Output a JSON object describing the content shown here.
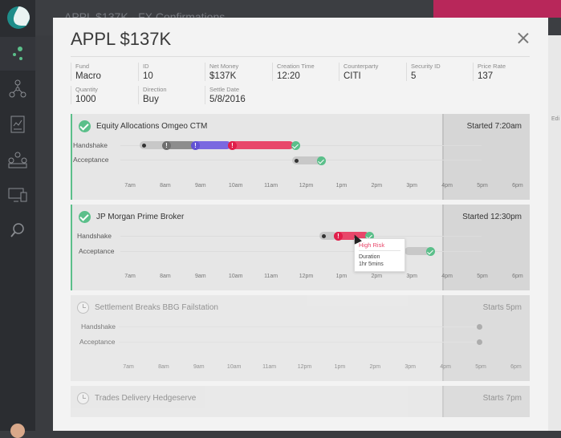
{
  "background": {
    "title": "APPL $137K - FX Confirmations",
    "side_tag": "Edi"
  },
  "sidebar": {
    "items": [
      {
        "icon": "dashboard-dots-icon"
      },
      {
        "icon": "workflow-nodes-icon"
      },
      {
        "icon": "report-chart-icon"
      },
      {
        "icon": "team-icon"
      },
      {
        "icon": "monitor-icon"
      },
      {
        "icon": "search-icon"
      }
    ]
  },
  "modal": {
    "title": "APPL $137K",
    "fields": [
      {
        "label": "Fund",
        "value": "Macro"
      },
      {
        "label": "ID",
        "value": "10"
      },
      {
        "label": "Net Money",
        "value": "$137K"
      },
      {
        "label": "Creation Time",
        "value": "12:20"
      },
      {
        "label": "Counterparty",
        "value": "CITI"
      },
      {
        "label": "Security ID",
        "value": "5"
      },
      {
        "label": "Price Rate",
        "value": "137"
      },
      {
        "label": "Quantity",
        "value": "1000"
      },
      {
        "label": "Direction",
        "value": "Buy"
      },
      {
        "label": "Settle Date",
        "value": "5/8/2016"
      }
    ],
    "time_axis": [
      "7am",
      "8am",
      "9am",
      "10am",
      "11am",
      "12pm",
      "1pm",
      "2pm",
      "3pm",
      "4pm",
      "5pm",
      "6pm"
    ],
    "row_labels": {
      "handshake": "Handshake",
      "acceptance": "Acceptance"
    },
    "sections": [
      {
        "name": "Equity Allocations Omgeo CTM",
        "start": "Started 7:20am",
        "status": "done"
      },
      {
        "name": "JP Morgan Prime Broker",
        "start": "Started 12:30pm",
        "status": "done"
      },
      {
        "name": "Settlement Breaks BBG Failstation",
        "start": "Starts 5pm",
        "status": "pending"
      },
      {
        "name": "Trades Delivery Hedgeserve",
        "start": "Starts 7pm",
        "status": "pending"
      }
    ],
    "tooltip": {
      "risk": "High Risk",
      "duration_label": "Duration",
      "duration_value": "1hr 5mins"
    },
    "warn_mark": "!",
    "colors": {
      "green": "#5bbf8a",
      "red": "#e8476a",
      "purple": "#7a68e0",
      "grey": "#8d8d8d"
    }
  }
}
